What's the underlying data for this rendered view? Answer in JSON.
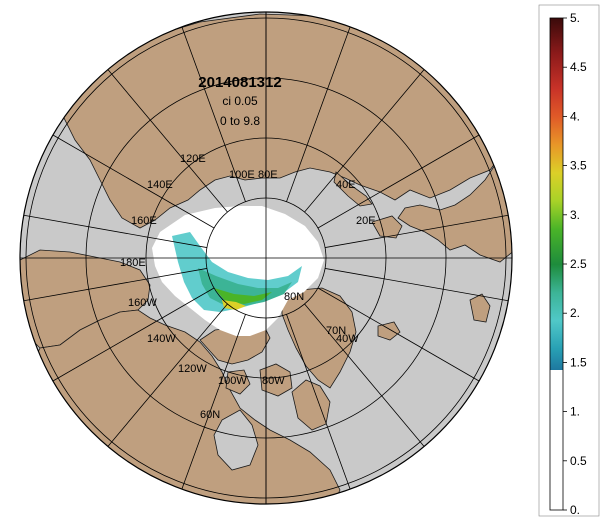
{
  "map": {
    "title": "2014081312",
    "contour_interval": "ci 0.05",
    "range": "0 to 9.8",
    "projection": "north polar stereographic",
    "colors": {
      "ocean": "#c9c9c9",
      "land": "#bf9f7f",
      "ice": "#ffffff",
      "coast": "#1a1a1a",
      "grid": "#000000",
      "background": "#ffffff"
    }
  },
  "grid_labels": {
    "e120": "120E",
    "e140": "140E",
    "e160": "160E",
    "e100": "100E",
    "e80": "80E",
    "e40": "40E",
    "e20": "20E",
    "e180": "180E",
    "w160": "160W",
    "w140": "140W",
    "w120": "120W",
    "w100": "100W",
    "w80": "80W",
    "w40": "40W",
    "n80": "80N",
    "n70": "70N",
    "n60": "60N"
  },
  "colorbar": {
    "ticks": [
      "5.",
      "4.5",
      "4.",
      "3.5",
      "3.",
      "2.5",
      "2.",
      "1.5",
      "1.",
      "0.5",
      "0."
    ],
    "colors_top_to_bottom": [
      "#3a0a0a",
      "#8b1a1a",
      "#c83228",
      "#e05a28",
      "#e89628",
      "#dcd028",
      "#a8d228",
      "#4ab428",
      "#1e8c3c",
      "#3cb496",
      "#50c8c8",
      "#28a0b4",
      "#1e78a0"
    ],
    "white_below": 1.5
  }
}
